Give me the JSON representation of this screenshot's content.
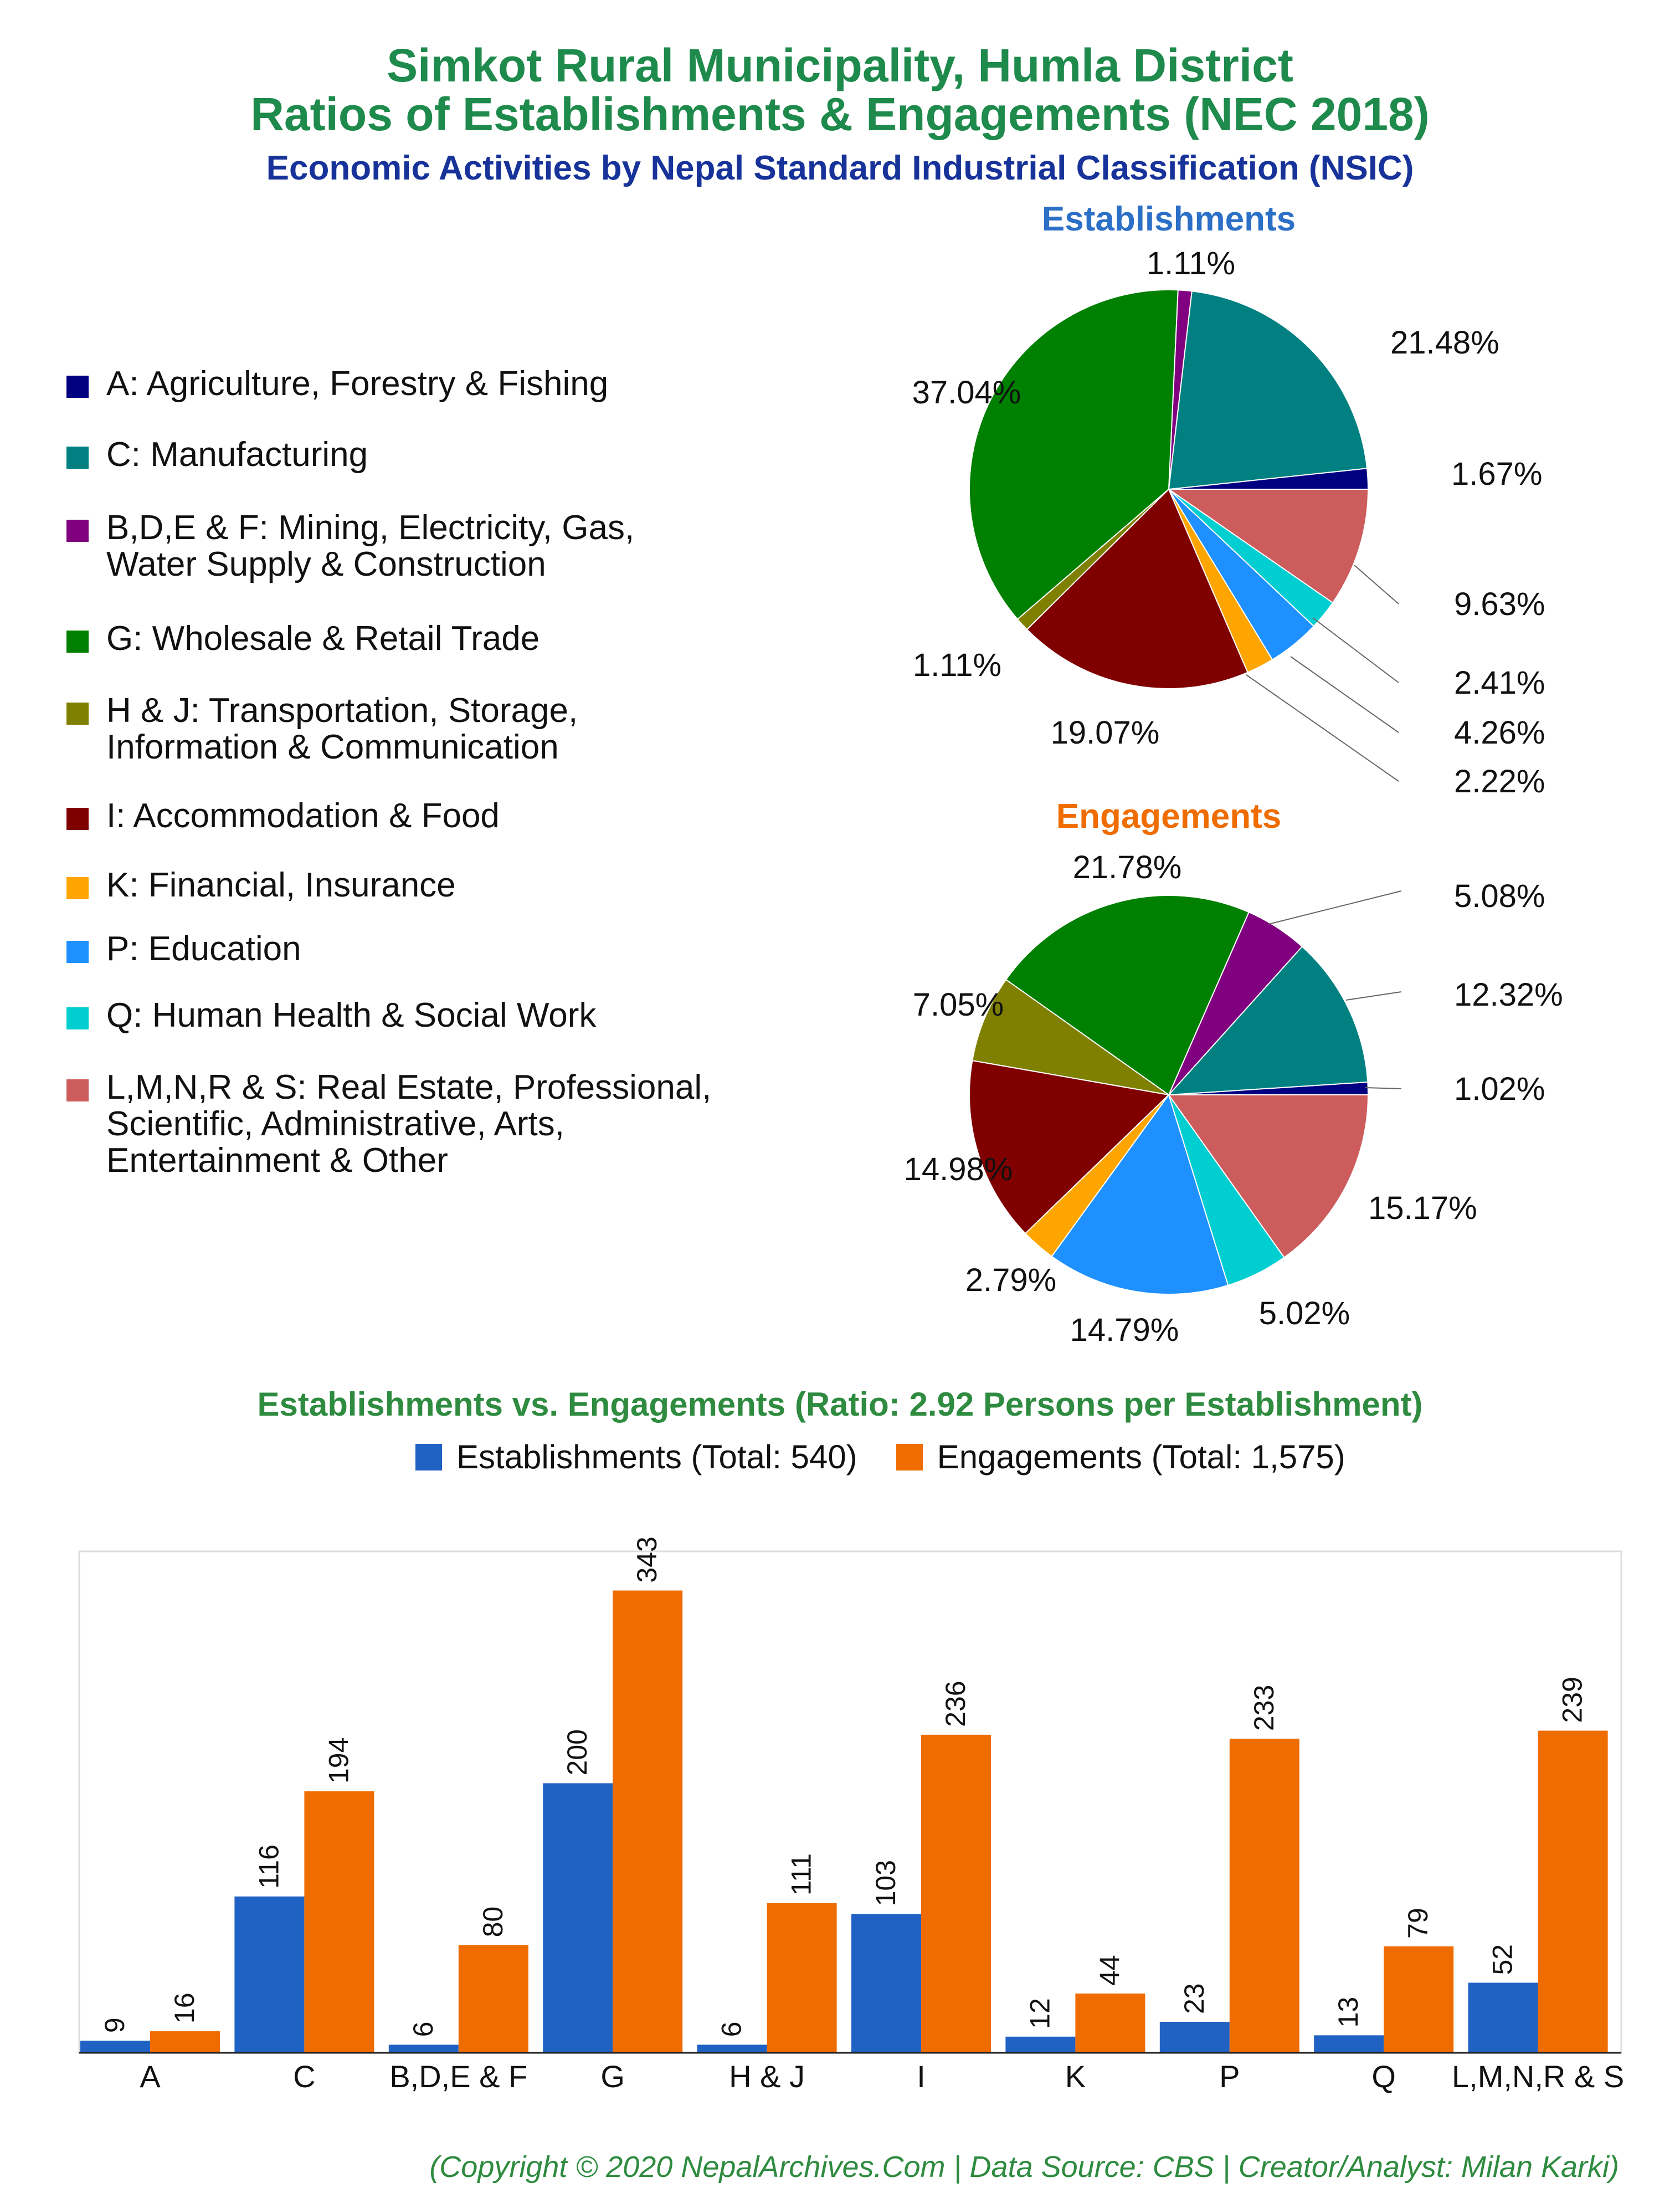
{
  "title_line1": "Simkot Rural Municipality, Humla District",
  "title_line2": "Ratios of Establishments & Engagements (NEC 2018)",
  "subtitle": "Economic Activities by Nepal Standard Industrial Classification (NSIC)",
  "colors": {
    "title": "#1e8a4c",
    "subtitle": "#17339a",
    "establishments": "#1f62c4",
    "engagements": "#ef6c00"
  },
  "legend": [
    {
      "code": "A",
      "label": "A: Agriculture, Forestry & Fishing",
      "color": "#000080"
    },
    {
      "code": "C",
      "label": "C: Manufacturing",
      "color": "#008080"
    },
    {
      "code": "BDEF",
      "label": "B,D,E & F: Mining, Electricity, Gas,\nWater Supply & Construction",
      "color": "#800080"
    },
    {
      "code": "G",
      "label": "G: Wholesale & Retail Trade",
      "color": "#008000"
    },
    {
      "code": "HJ",
      "label": "H & J: Transportation, Storage,\nInformation & Communication",
      "color": "#808000"
    },
    {
      "code": "I",
      "label": "I: Accommodation & Food",
      "color": "#800000"
    },
    {
      "code": "K",
      "label": "K: Financial, Insurance",
      "color": "#ffa500"
    },
    {
      "code": "P",
      "label": "P: Education",
      "color": "#1e90ff"
    },
    {
      "code": "Q",
      "label": "Q: Human Health & Social Work",
      "color": "#00ced1"
    },
    {
      "code": "LMNRS",
      "label": "L,M,N,R & S: Real Estate, Professional,\nScientific, Administrative, Arts,\nEntertainment & Other",
      "color": "#cd5c5c"
    }
  ],
  "bar_chart_title": "Establishments vs. Engagements (Ratio: 2.92 Persons per Establishment)",
  "bar_legend": {
    "establishments": "Establishments (Total: 540)",
    "engagements": "Engagements (Total: 1,575)"
  },
  "footer": "(Copyright © 2020 NepalArchives.Com | Data Source: CBS | Creator/Analyst: Milan Karki)",
  "chart_data": [
    {
      "type": "pie",
      "title": "Establishments",
      "labels": [
        "A",
        "C",
        "B,D,E & F",
        "G",
        "H & J",
        "I",
        "K",
        "P",
        "Q",
        "L,M,N,R & S"
      ],
      "values": [
        1.67,
        21.48,
        1.11,
        37.04,
        1.11,
        19.07,
        2.22,
        4.26,
        2.41,
        9.63
      ],
      "value_labels": [
        "1.67%",
        "21.48%",
        "1.11%",
        "37.04%",
        "1.11%",
        "19.07%",
        "2.22%",
        "4.26%",
        "2.41%",
        "9.63%"
      ]
    },
    {
      "type": "pie",
      "title": "Engagements",
      "labels": [
        "A",
        "C",
        "B,D,E & F",
        "G",
        "H & J",
        "I",
        "K",
        "P",
        "Q",
        "L,M,N,R & S"
      ],
      "values": [
        1.02,
        12.32,
        5.08,
        21.78,
        7.05,
        14.98,
        2.79,
        14.79,
        5.02,
        15.17
      ],
      "value_labels": [
        "1.02%",
        "12.32%",
        "5.08%",
        "21.78%",
        "7.05%",
        "14.98%",
        "2.79%",
        "14.79%",
        "5.02%",
        "15.17%"
      ]
    },
    {
      "type": "bar",
      "title": "Establishments vs. Engagements (Ratio: 2.92 Persons per Establishment)",
      "categories": [
        "A",
        "C",
        "B,D,E & F",
        "G",
        "H & J",
        "I",
        "K",
        "P",
        "Q",
        "L,M,N,R & S"
      ],
      "series": [
        {
          "name": "Establishments (Total: 540)",
          "values": [
            9,
            116,
            6,
            200,
            6,
            103,
            12,
            23,
            13,
            52
          ]
        },
        {
          "name": "Engagements (Total: 1,575)",
          "values": [
            16,
            194,
            80,
            343,
            111,
            236,
            44,
            233,
            79,
            239
          ]
        }
      ],
      "ylim": [
        0,
        372
      ],
      "legend": "top-right"
    }
  ]
}
